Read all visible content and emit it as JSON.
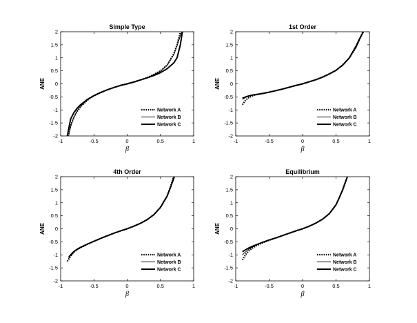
{
  "chart_data": [
    {
      "type": "line",
      "title": "Simple Type",
      "xlabel": "β",
      "ylabel": "ANE",
      "xlim": [
        -1,
        1
      ],
      "ylim": [
        -2,
        2
      ],
      "xticks": [
        "-1",
        "-0.5",
        "0",
        "0.5",
        "1"
      ],
      "yticks": [
        "2",
        "1.5",
        "1",
        "0.5",
        "0",
        "-0.5",
        "-1",
        "-1.5",
        "-2"
      ],
      "legend_position": "bottom-right",
      "series": [
        {
          "name": "Network A",
          "style": "dotted",
          "x": [
            -0.9,
            -0.85,
            -0.8,
            -0.75,
            -0.7,
            -0.6,
            -0.5,
            -0.4,
            -0.3,
            -0.2,
            -0.1,
            0,
            0.1,
            0.2,
            0.3,
            0.4,
            0.5,
            0.6,
            0.7,
            0.75,
            0.8
          ],
          "y": [
            -2,
            -1.6,
            -1.3,
            -1.05,
            -0.88,
            -0.63,
            -0.46,
            -0.34,
            -0.23,
            -0.14,
            -0.06,
            0,
            0.07,
            0.15,
            0.24,
            0.36,
            0.5,
            0.72,
            1.15,
            1.5,
            2
          ]
        },
        {
          "name": "Network B",
          "style": "thin",
          "x": [
            -0.88,
            -0.84,
            -0.8,
            -0.75,
            -0.7,
            -0.6,
            -0.5,
            -0.4,
            -0.3,
            -0.2,
            -0.1,
            0,
            0.1,
            0.2,
            0.3,
            0.4,
            0.5,
            0.6,
            0.7,
            0.75,
            0.82
          ],
          "y": [
            -2,
            -1.55,
            -1.25,
            -1.02,
            -0.86,
            -0.62,
            -0.45,
            -0.33,
            -0.23,
            -0.14,
            -0.06,
            0,
            0.07,
            0.15,
            0.24,
            0.35,
            0.48,
            0.7,
            1.12,
            1.45,
            2
          ]
        },
        {
          "name": "Network C",
          "style": "thick",
          "x": [
            -0.9,
            -0.85,
            -0.8,
            -0.75,
            -0.7,
            -0.6,
            -0.5,
            -0.4,
            -0.3,
            -0.2,
            -0.1,
            0,
            0.1,
            0.2,
            0.3,
            0.4,
            0.5,
            0.6,
            0.7,
            0.75,
            0.8,
            0.83
          ],
          "y": [
            -2,
            -1.35,
            -1.1,
            -0.93,
            -0.8,
            -0.6,
            -0.45,
            -0.33,
            -0.23,
            -0.14,
            -0.06,
            0,
            0.07,
            0.15,
            0.23,
            0.32,
            0.43,
            0.58,
            0.8,
            1.0,
            1.5,
            2
          ]
        }
      ]
    },
    {
      "type": "line",
      "title": "1st Order",
      "xlabel": "β",
      "ylabel": "ANE",
      "xlim": [
        -1,
        1
      ],
      "ylim": [
        -2,
        2
      ],
      "xticks": [
        "-1",
        "-0.5",
        "0",
        "0.5",
        "1"
      ],
      "yticks": [
        "2",
        "1.5",
        "1",
        "0.5",
        "0",
        "-0.5",
        "-1",
        "-1.5",
        "-2"
      ],
      "legend_position": "bottom-right",
      "series": [
        {
          "name": "Network A",
          "style": "dotted",
          "x": [
            -0.9,
            -0.85,
            -0.8,
            -0.75,
            -0.7,
            -0.6,
            -0.5,
            -0.4,
            -0.3,
            -0.2,
            -0.1,
            0,
            0.1,
            0.2,
            0.3,
            0.4,
            0.5,
            0.6,
            0.7,
            0.8,
            0.85,
            0.9
          ],
          "y": [
            -0.8,
            -0.62,
            -0.52,
            -0.46,
            -0.42,
            -0.37,
            -0.32,
            -0.26,
            -0.2,
            -0.13,
            -0.06,
            0,
            0.08,
            0.16,
            0.26,
            0.38,
            0.52,
            0.72,
            1.0,
            1.4,
            1.68,
            2
          ]
        },
        {
          "name": "Network B",
          "style": "thin",
          "x": [
            -0.9,
            -0.85,
            -0.8,
            -0.75,
            -0.7,
            -0.6,
            -0.5,
            -0.4,
            -0.3,
            -0.2,
            -0.1,
            0,
            0.1,
            0.2,
            0.3,
            0.4,
            0.5,
            0.6,
            0.7,
            0.8,
            0.85,
            0.91
          ],
          "y": [
            -0.6,
            -0.52,
            -0.47,
            -0.44,
            -0.41,
            -0.37,
            -0.32,
            -0.26,
            -0.2,
            -0.13,
            -0.06,
            0,
            0.08,
            0.16,
            0.26,
            0.38,
            0.52,
            0.72,
            1.0,
            1.42,
            1.7,
            2
          ]
        },
        {
          "name": "Network C",
          "style": "thick",
          "x": [
            -0.9,
            -0.85,
            -0.8,
            -0.75,
            -0.7,
            -0.6,
            -0.5,
            -0.4,
            -0.3,
            -0.2,
            -0.1,
            0,
            0.1,
            0.2,
            0.3,
            0.4,
            0.5,
            0.6,
            0.7,
            0.8,
            0.85,
            0.91
          ],
          "y": [
            -0.55,
            -0.5,
            -0.46,
            -0.43,
            -0.41,
            -0.37,
            -0.32,
            -0.26,
            -0.2,
            -0.13,
            -0.06,
            0,
            0.08,
            0.16,
            0.26,
            0.38,
            0.52,
            0.72,
            1.0,
            1.45,
            1.72,
            2
          ]
        }
      ]
    },
    {
      "type": "line",
      "title": "4th Order",
      "xlabel": "β",
      "ylabel": "ANE",
      "xlim": [
        -1,
        1
      ],
      "ylim": [
        -2,
        2
      ],
      "xticks": [
        "-1",
        "-0.5",
        "0",
        "0.5",
        "1"
      ],
      "yticks": [
        "2",
        "1.5",
        "1",
        "0.5",
        "0",
        "-0.5",
        "-1",
        "-1.5",
        "-2"
      ],
      "legend_position": "bottom-right",
      "series": [
        {
          "name": "Network A",
          "style": "dotted",
          "x": [
            -0.9,
            -0.85,
            -0.8,
            -0.75,
            -0.7,
            -0.6,
            -0.5,
            -0.4,
            -0.3,
            -0.2,
            -0.1,
            0,
            0.1,
            0.2,
            0.3,
            0.4,
            0.5,
            0.6,
            0.65,
            0.7
          ],
          "y": [
            -1.25,
            -1.05,
            -0.9,
            -0.8,
            -0.72,
            -0.6,
            -0.48,
            -0.37,
            -0.27,
            -0.17,
            -0.08,
            0,
            0.1,
            0.21,
            0.35,
            0.54,
            0.82,
            1.25,
            1.6,
            2
          ]
        },
        {
          "name": "Network B",
          "style": "thin",
          "x": [
            -0.88,
            -0.85,
            -0.8,
            -0.75,
            -0.7,
            -0.6,
            -0.5,
            -0.4,
            -0.3,
            -0.2,
            -0.1,
            0,
            0.1,
            0.2,
            0.3,
            0.4,
            0.5,
            0.6,
            0.65,
            0.7
          ],
          "y": [
            -1.15,
            -1.02,
            -0.88,
            -0.79,
            -0.71,
            -0.59,
            -0.48,
            -0.37,
            -0.27,
            -0.17,
            -0.08,
            0,
            0.1,
            0.21,
            0.35,
            0.54,
            0.82,
            1.25,
            1.6,
            2
          ]
        },
        {
          "name": "Network C",
          "style": "thick",
          "x": [
            -0.88,
            -0.85,
            -0.8,
            -0.75,
            -0.7,
            -0.6,
            -0.5,
            -0.4,
            -0.3,
            -0.2,
            -0.1,
            0,
            0.1,
            0.2,
            0.3,
            0.4,
            0.5,
            0.6,
            0.65,
            0.71
          ],
          "y": [
            -1.1,
            -1.0,
            -0.87,
            -0.78,
            -0.71,
            -0.59,
            -0.48,
            -0.37,
            -0.27,
            -0.17,
            -0.08,
            0,
            0.1,
            0.21,
            0.35,
            0.54,
            0.82,
            1.25,
            1.58,
            2
          ]
        }
      ]
    },
    {
      "type": "line",
      "title": "Equilibrium",
      "xlabel": "β",
      "ylabel": "ANE",
      "xlim": [
        -1,
        1
      ],
      "ylim": [
        -2,
        2
      ],
      "xticks": [
        "-1",
        "-0.5",
        "0",
        "0.5",
        "1"
      ],
      "yticks": [
        "2",
        "1.5",
        "1",
        "0.5",
        "0",
        "-0.5",
        "-1",
        "-1.5",
        "-2"
      ],
      "legend_position": "bottom-right",
      "series": [
        {
          "name": "Network A",
          "style": "dotted",
          "x": [
            -0.9,
            -0.85,
            -0.8,
            -0.75,
            -0.7,
            -0.6,
            -0.5,
            -0.4,
            -0.3,
            -0.2,
            -0.1,
            0,
            0.1,
            0.2,
            0.3,
            0.4,
            0.5,
            0.55,
            0.6,
            0.67
          ],
          "y": [
            -1.2,
            -0.98,
            -0.84,
            -0.74,
            -0.66,
            -0.54,
            -0.44,
            -0.35,
            -0.26,
            -0.17,
            -0.08,
            0,
            0.1,
            0.22,
            0.37,
            0.58,
            0.92,
            1.2,
            1.5,
            2
          ]
        },
        {
          "name": "Network B",
          "style": "thin",
          "x": [
            -0.9,
            -0.85,
            -0.8,
            -0.75,
            -0.7,
            -0.6,
            -0.5,
            -0.4,
            -0.3,
            -0.2,
            -0.1,
            0,
            0.1,
            0.2,
            0.3,
            0.4,
            0.5,
            0.55,
            0.6,
            0.67
          ],
          "y": [
            -1.0,
            -0.88,
            -0.78,
            -0.7,
            -0.64,
            -0.53,
            -0.44,
            -0.35,
            -0.26,
            -0.17,
            -0.08,
            0,
            0.1,
            0.22,
            0.37,
            0.58,
            0.92,
            1.2,
            1.5,
            2
          ]
        },
        {
          "name": "Network C",
          "style": "thick",
          "x": [
            -0.9,
            -0.85,
            -0.8,
            -0.75,
            -0.7,
            -0.6,
            -0.5,
            -0.4,
            -0.3,
            -0.2,
            -0.1,
            0,
            0.1,
            0.2,
            0.3,
            0.4,
            0.5,
            0.55,
            0.6,
            0.67
          ],
          "y": [
            -0.88,
            -0.8,
            -0.73,
            -0.67,
            -0.62,
            -0.52,
            -0.43,
            -0.35,
            -0.26,
            -0.17,
            -0.08,
            0,
            0.1,
            0.22,
            0.37,
            0.58,
            0.92,
            1.2,
            1.5,
            2
          ]
        }
      ]
    }
  ]
}
